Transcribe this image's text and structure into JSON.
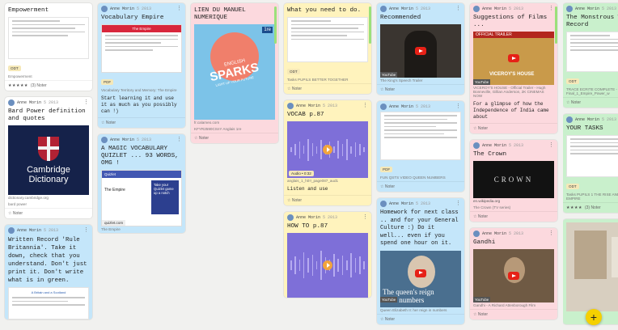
{
  "meta": {
    "author": "Anne Morin",
    "date": "5 2013",
    "note_label": "Noter"
  },
  "colors": {
    "green_bar": "#9be07a",
    "fab": "#f5d000",
    "youtube": "#e62117"
  },
  "cards": {
    "c1": {
      "title": "Empowerment",
      "badge": "ODT",
      "caption": "Empowerment",
      "stars": "★★★★★",
      "count": "(3) Noter"
    },
    "c2": {
      "title": "Bard Power definition and quotes",
      "img_line1": "Cambridge",
      "img_line2": "Dictionary",
      "caption": "dictionary.cambridge.org",
      "sub": "bard power"
    },
    "c3": {
      "body": "Written Record 'Rule Britannia'. Take it down, check that you understand. Don't just print it. Don't write what is in green.",
      "doc_title": "A Britain and a Scotland"
    },
    "c4": {
      "title": "Vocabulary Empire",
      "img_title": "The Empire",
      "badge": "PDF",
      "caption": "Vocabulary Territory and Memory: The Empire",
      "body": "Start learning it and use it as much as you possibly can !)"
    },
    "c5": {
      "title": "A MAGIC VOCABULARY QUIZLET ... 93 WORDS, OMG !",
      "img_head": "Quizlet",
      "img_title": "The Empire",
      "img_promo": "Take your Quizlet game up a notch",
      "img_link": "quizlet.com",
      "caption": "The Empire"
    },
    "c6": {
      "title": "LIEN DU MANUEL NUMERIQUE",
      "book_line1": "ENGLISH",
      "book_line2": "SPARKS",
      "book_line3": "LIGHT UP YOUR FUTURE",
      "book_level": "1re",
      "caption": "fr.calameo.com",
      "sub": "KFYR2590CSnY Anglais 1re"
    },
    "c7": {
      "title": "What you need to do.",
      "badge": "ODT",
      "caption": "Tasks PUPILS BETTER TOGETHER"
    },
    "c8": {
      "title": "VOCAB p.87",
      "audio_badge": "Audio • 0:32",
      "caption": "anglais_1_h0!!_page087_aud1",
      "body": "Listen and use"
    },
    "c9": {
      "title": "HOW TO p.87"
    },
    "c10": {
      "title": "Recommended",
      "yt": "YouTube",
      "caption": "The King's Speech Trailer"
    },
    "c11": {
      "badge": "PDF",
      "caption": "FUN QSTS VIDEO QUEEN NUMBERS"
    },
    "c12": {
      "title": "Homework for next class .. and for your General Culture :) Do it well... even if you spend one hour on it.",
      "overlay1": "The queen's reign",
      "overlay2": "in numbers",
      "yt": "YouTube",
      "caption": "Queen Elizabeth II: her reign in numbers"
    },
    "c13": {
      "title": "Suggestions of Films ...",
      "banner": "OFFICIAL TRAILER",
      "poster": "VICEROY'S HOUSE",
      "yt": "YouTube",
      "caption": "VICEROY'S HOUSE - Official Trailer - Hugh Bonneville, Gillian Anderson, 2K CINEMAS NOW",
      "body": "For a glimpse of how the Independence of India came about"
    },
    "c14": {
      "title": "The Crown",
      "img_text": "CROWN",
      "caption": "en.wikipedia.org",
      "sub": "The Crown (TV series)"
    },
    "c15": {
      "title": "Gandhi",
      "yt": "YouTube",
      "caption": "Gandhi - A Richard Attenborough Film"
    },
    "c16": {
      "title": "The Monstrous Written Record",
      "badge": "ODT",
      "caption": "TRACE ECRITE COMPLETE - Final_1_Empire_Power_w"
    },
    "c17": {
      "title": "YOUR TASKS",
      "badge": "ODT",
      "caption": "Tasks PUPILS 1 THE RISE AND FALL OF THE EMPIRE",
      "stars": "★★★★",
      "count": "(3) Noter"
    }
  },
  "fab_label": "+"
}
